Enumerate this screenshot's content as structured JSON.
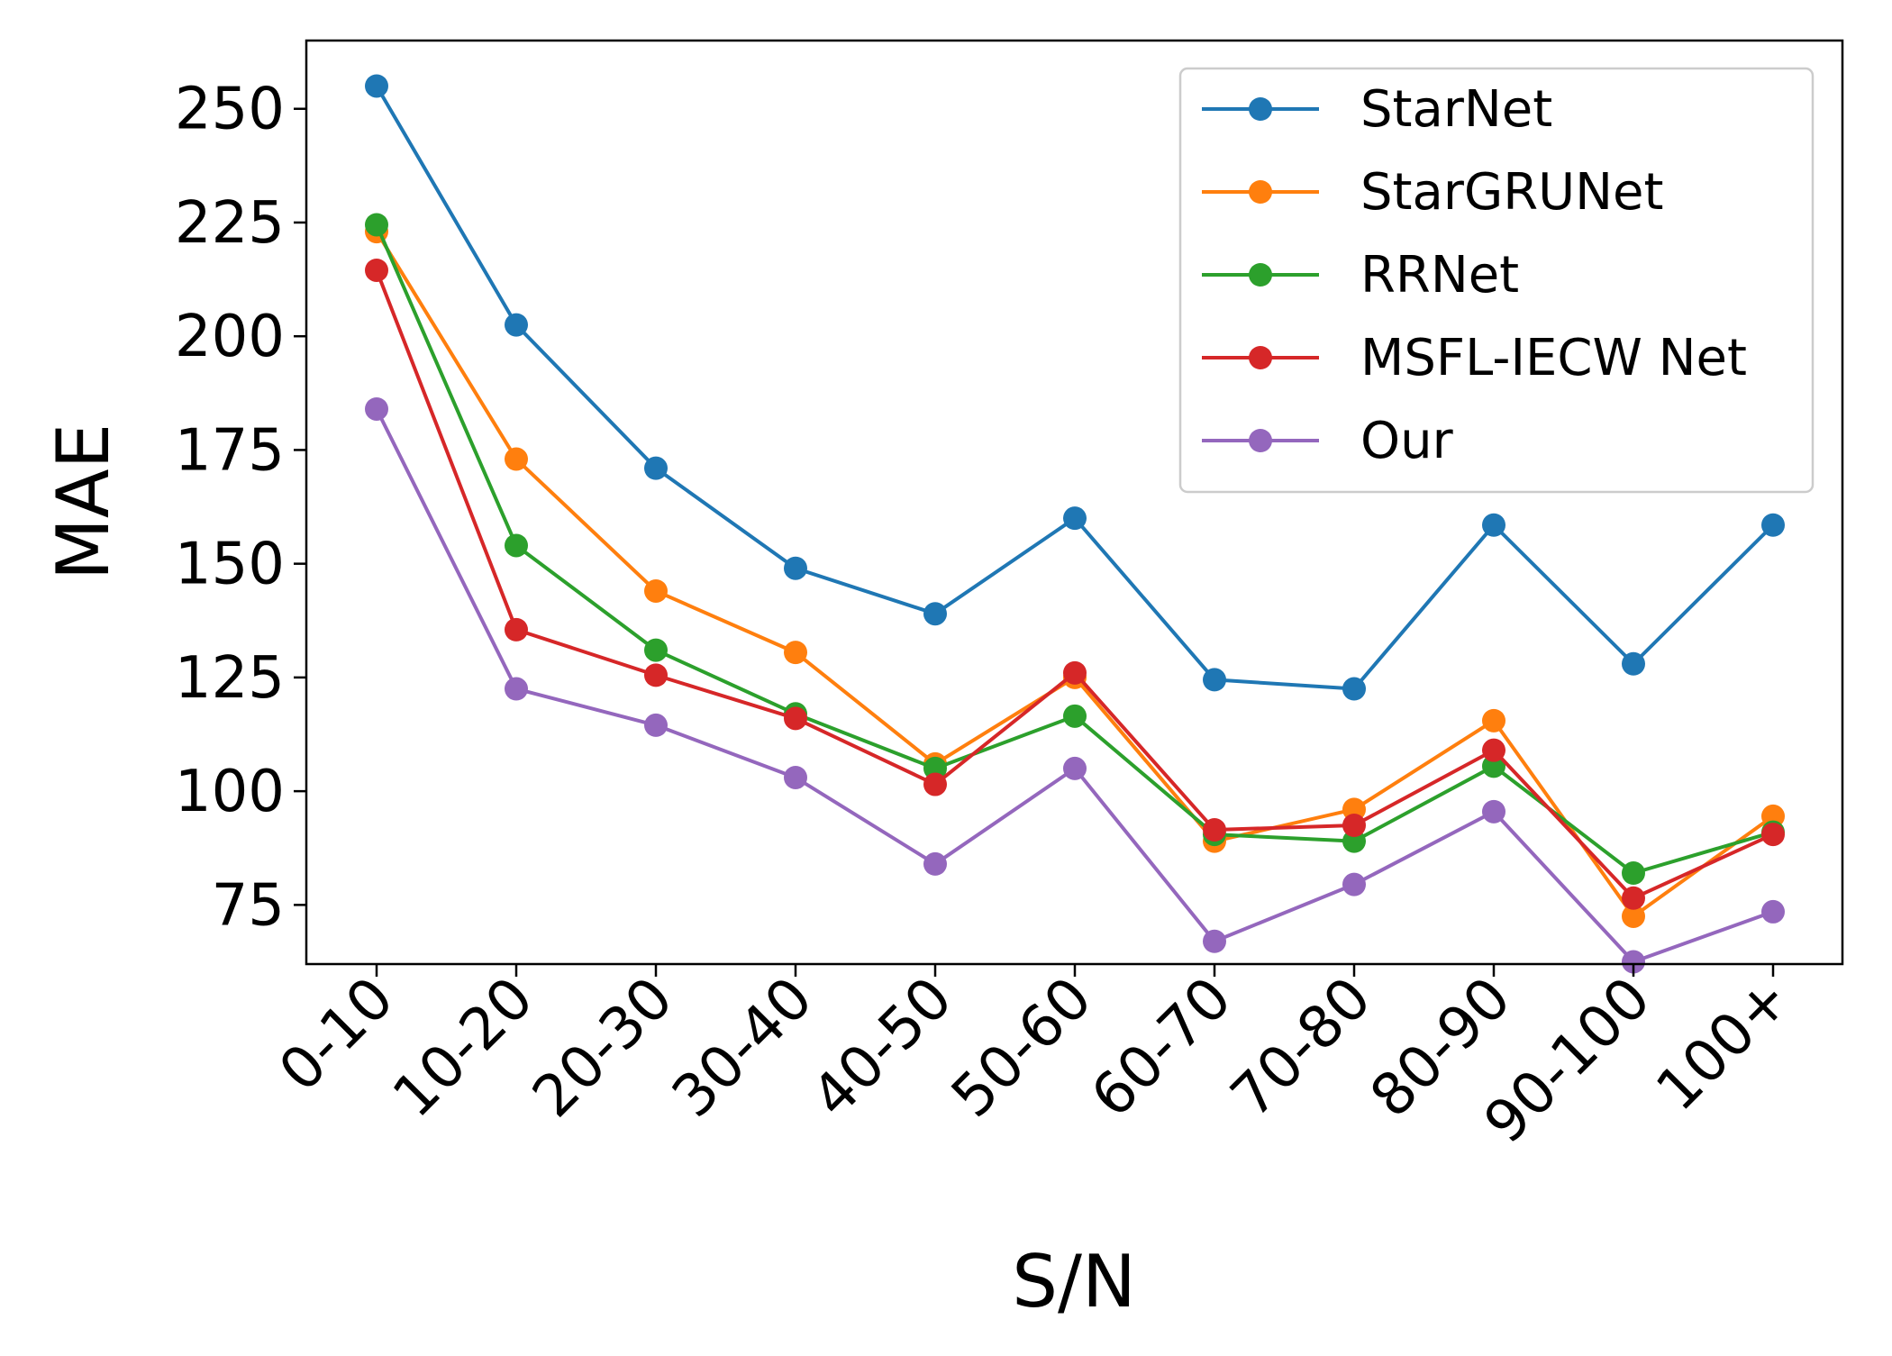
{
  "chart_data": {
    "type": "line",
    "title": "",
    "xlabel": "S/N",
    "ylabel": "MAE",
    "categories": [
      "0-10",
      "10-20",
      "20-30",
      "30-40",
      "40-50",
      "50-60",
      "60-70",
      "70-80",
      "80-90",
      "90-100",
      "100+"
    ],
    "ylim": [
      62,
      265
    ],
    "yticks": [
      75,
      100,
      125,
      150,
      175,
      200,
      225,
      250
    ],
    "grid": false,
    "legend_position": "top-right",
    "series": [
      {
        "name": "StarNet",
        "color": "#1f77b4",
        "values": [
          255,
          202.5,
          171,
          149,
          139,
          160,
          124.5,
          122.5,
          158.5,
          128,
          158.5
        ]
      },
      {
        "name": "StarGRUNet",
        "color": "#ff7f0e",
        "values": [
          223,
          173,
          144,
          130.5,
          106,
          125,
          89,
          96,
          115.5,
          72.5,
          94.5
        ]
      },
      {
        "name": "RRNet",
        "color": "#2ca02c",
        "values": [
          224.5,
          154,
          131,
          117,
          105,
          116.5,
          90.5,
          89,
          105.5,
          82,
          91
        ]
      },
      {
        "name": "MSFL-IECW Net",
        "color": "#d62728",
        "values": [
          214.5,
          135.5,
          125.5,
          116,
          101.5,
          126,
          91.5,
          92.5,
          109,
          76.5,
          90.5
        ]
      },
      {
        "name": "Our",
        "color": "#9467bd",
        "values": [
          184,
          122.5,
          114.5,
          103,
          84,
          105,
          67,
          79.5,
          95.5,
          62.5,
          73.5
        ]
      }
    ]
  }
}
